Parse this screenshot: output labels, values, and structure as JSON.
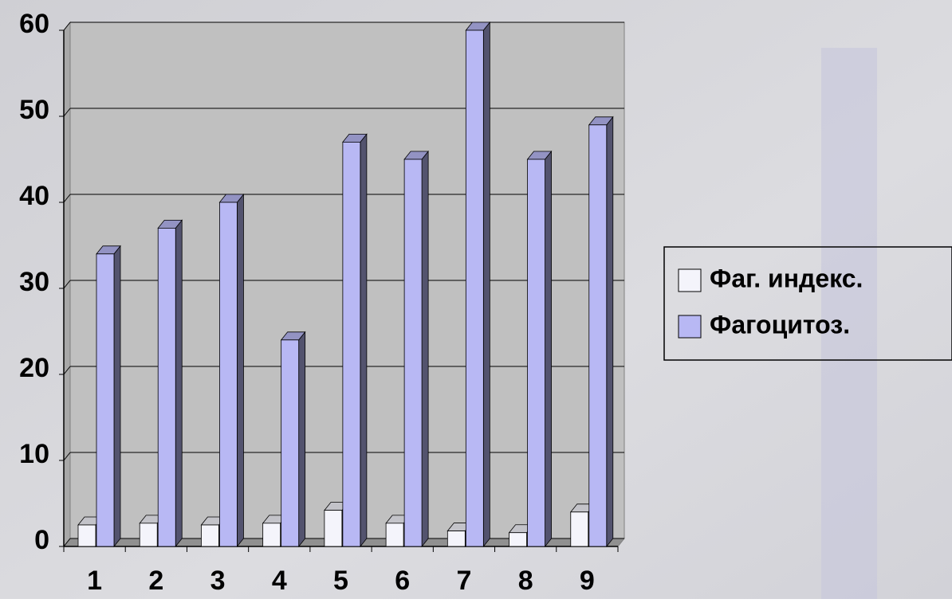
{
  "chart_data": {
    "type": "bar3d",
    "categories": [
      "1",
      "2",
      "3",
      "4",
      "5",
      "6",
      "7",
      "8",
      "9"
    ],
    "series": [
      {
        "name": "Фаг. индекс.",
        "color": "#f4f4fb",
        "values": [
          2.5,
          2.7,
          2.5,
          2.7,
          4.2,
          2.7,
          1.8,
          1.6,
          4.0
        ]
      },
      {
        "name": "Фагоцитоз.",
        "color": "#b8b8f4",
        "values": [
          34,
          37,
          40,
          24,
          47,
          45,
          60,
          45,
          49
        ]
      }
    ],
    "ylim": [
      0,
      60
    ],
    "yticks": [
      0,
      10,
      20,
      30,
      40,
      50,
      60
    ],
    "grid": true,
    "legend": "right"
  }
}
